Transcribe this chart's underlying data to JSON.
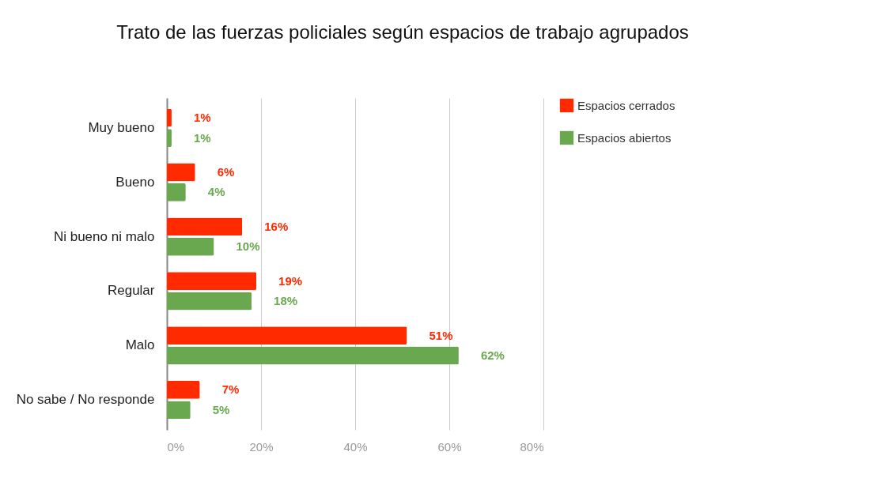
{
  "chart_data": {
    "type": "bar",
    "orientation": "horizontal",
    "title": "Trato de las fuerzas policiales según espacios de trabajo agrupados",
    "categories": [
      "Muy bueno",
      "Bueno",
      "Ni bueno ni malo",
      "Regular",
      "Malo",
      "No sabe / No responde"
    ],
    "series": [
      {
        "name": "Espacios cerrados",
        "color": "#ff2a00",
        "values": [
          1,
          6,
          16,
          19,
          51,
          7
        ],
        "value_labels": [
          "1%",
          "6%",
          "16%",
          "19%",
          "51%",
          "7%"
        ]
      },
      {
        "name": "Espacios abiertos",
        "color": "#6aa84f",
        "values": [
          1,
          4,
          10,
          18,
          62,
          5
        ],
        "value_labels": [
          "1%",
          "4%",
          "10%",
          "18%",
          "62%",
          "5%"
        ]
      }
    ],
    "xlim": [
      0,
      80
    ],
    "xticks": [
      {
        "value": 0,
        "label": "0%"
      },
      {
        "value": 20,
        "label": "20%"
      },
      {
        "value": 40,
        "label": "40%"
      },
      {
        "value": 60,
        "label": "60%"
      },
      {
        "value": 80,
        "label": "80%"
      }
    ],
    "grid": "x",
    "legend": "top right"
  }
}
